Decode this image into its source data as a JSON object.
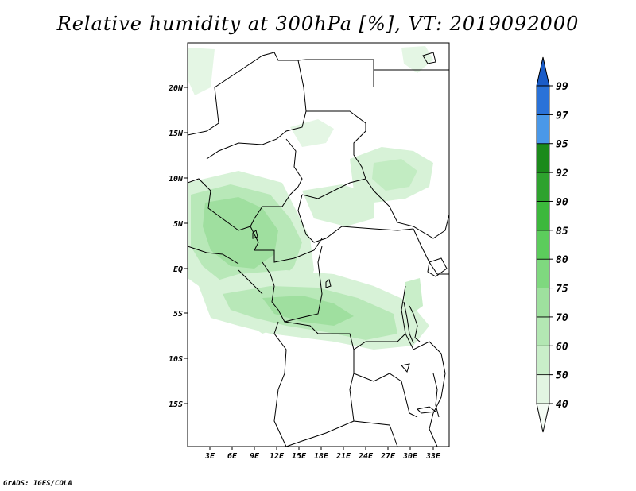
{
  "title": "Relative humidity at 300hPa [%], VT: 2019092000",
  "credit": "GrADS: IGES/COLA",
  "map": {
    "lat_labels": [
      "20N",
      "15N",
      "10N",
      "5N",
      "EQ",
      "5S",
      "10S",
      "15S"
    ],
    "lon_labels": [
      "3E",
      "6E",
      "9E",
      "12E",
      "15E",
      "18E",
      "21E",
      "24E",
      "27E",
      "30E",
      "33E"
    ]
  },
  "colorbar": {
    "labels": [
      "40",
      "50",
      "60",
      "70",
      "75",
      "80",
      "85",
      "90",
      "92",
      "95",
      "97",
      "99"
    ],
    "colors": [
      "#f4fbf4",
      "#e2f5e2",
      "#c9eec9",
      "#b3e7b3",
      "#9ee09e",
      "#7fd87f",
      "#5ccc5c",
      "#3cb83c",
      "#2ea22e",
      "#1b8a1b",
      "#4a98e8",
      "#2a72d8",
      "#1a5cc8"
    ]
  }
}
